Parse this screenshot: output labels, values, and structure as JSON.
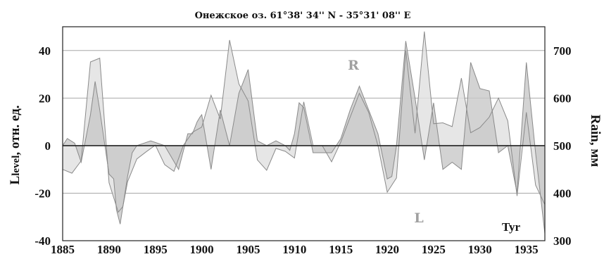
{
  "chart_data": {
    "type": "area",
    "title": "Онежское оз.  61°38' 34'' N - 35°31' 08'' E",
    "ylabel_left": "L",
    "ylabel_left_sub": "level",
    "ylabel_left_rest": ", отн. ед.",
    "ylabel_right": "Rain, мм",
    "corner_label": "Tyr",
    "series_labels": {
      "R": "R",
      "L": "L"
    },
    "xlim": [
      1885,
      1937
    ],
    "ylim_left": [
      -40,
      50
    ],
    "ylim_right": [
      300,
      750
    ],
    "x_ticks": [
      "1885",
      "1890",
      "1895",
      "1900",
      "1905",
      "1910",
      "1915",
      "1920",
      "1925",
      "1930",
      "1935"
    ],
    "y_left_ticks": [
      "40",
      "20",
      "0",
      "-20",
      "-40"
    ],
    "y_right_ticks": [
      "700",
      "600",
      "500",
      "400",
      "300"
    ],
    "grid": true,
    "colors": {
      "level_fill": "#c8c8c8",
      "rain_fill": "#e2e2e2",
      "line": "#8a8a8a",
      "zero_line": "#222222",
      "grid": "#a8a8a8"
    },
    "series": [
      {
        "name": "L",
        "x": [
          1885,
          1885.5,
          1886.3,
          1887,
          1888,
          1888.5,
          1889,
          1890,
          1890.5,
          1890.8,
          1891.2,
          1892,
          1892.5,
          1893,
          1894.5,
          1896,
          1897.5,
          1898.5,
          1899,
          1899.5,
          1899.8,
          1900,
          1901,
          1902,
          1903,
          1904,
          1905,
          1906,
          1907,
          1908,
          1909,
          1909.5,
          1910,
          1910.5,
          1911,
          1912,
          1913,
          1914,
          1915,
          1916,
          1917,
          1918,
          1919,
          1920,
          1920.5,
          1921,
          1922,
          1923,
          1924,
          1925,
          1926,
          1927,
          1928,
          1929,
          1930,
          1931,
          1932,
          1933,
          1934,
          1935,
          1936,
          1937
        ],
        "values": [
          0,
          3,
          1,
          -7,
          13,
          27,
          15,
          -12,
          -14,
          -27,
          -33,
          -13,
          -3,
          0,
          2,
          0,
          -10,
          5,
          5,
          10,
          12,
          13,
          -10,
          15,
          0,
          22,
          32,
          2,
          0,
          2,
          0,
          -2,
          5,
          18,
          16,
          -3,
          -3,
          -3,
          3,
          15,
          25,
          15,
          5,
          -14,
          -13,
          0,
          44,
          20,
          -6,
          18,
          -10,
          -7,
          -10,
          35,
          24,
          23,
          -3,
          0,
          -20,
          35,
          -3,
          -37
        ]
      },
      {
        "name": "R",
        "x": [
          1885,
          1886,
          1887,
          1888,
          1889,
          1890,
          1891,
          1891.5,
          1892,
          1893,
          1894,
          1895,
          1896,
          1897,
          1898,
          1899,
          1900,
          1901,
          1902,
          1903,
          1904,
          1905,
          1906,
          1907,
          1908,
          1909,
          1910,
          1911,
          1912,
          1913,
          1914,
          1915,
          1916,
          1917,
          1918,
          1919,
          1920,
          1921,
          1922,
          1923,
          1924,
          1925,
          1926,
          1927,
          1928,
          1929,
          1930,
          1931,
          1932,
          1933,
          1934,
          1935,
          1936,
          1937
        ],
        "values": [
          450,
          442,
          468,
          676,
          684,
          422,
          360,
          372,
          424,
          472,
          487,
          501,
          460,
          446,
          500,
          528,
          539,
          606,
          556,
          722,
          630,
          594,
          470,
          448,
          494,
          488,
          474,
          592,
          500,
          500,
          466,
          508,
          560,
          610,
          570,
          500,
          402,
          432,
          700,
          526,
          740,
          546,
          548,
          540,
          642,
          527,
          538,
          560,
          600,
          552,
          394,
          570,
          417,
          376
        ]
      }
    ]
  }
}
